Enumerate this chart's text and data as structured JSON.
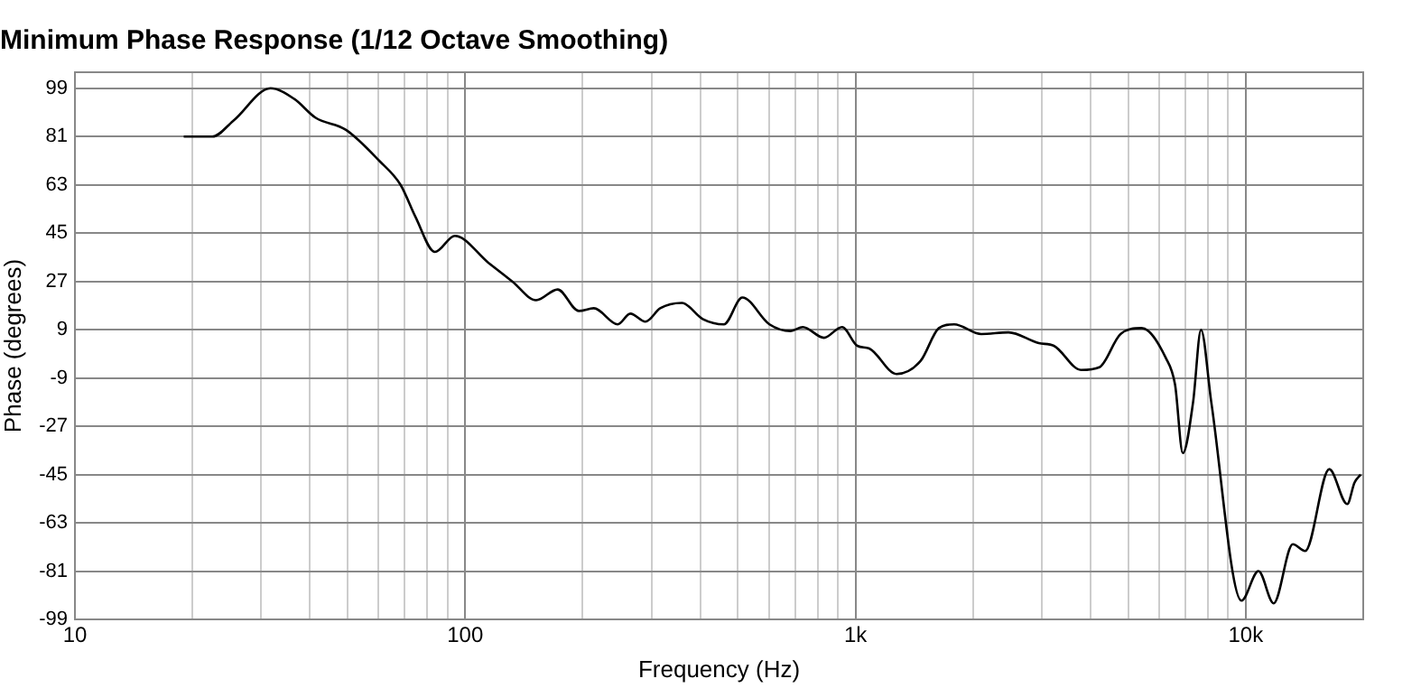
{
  "chart_data": {
    "type": "line",
    "title": "Minimum Phase Response (1/12 Octave Smoothing)",
    "xlabel": "Frequency (Hz)",
    "ylabel": "Phase (degrees)",
    "log": "x",
    "grid": true,
    "legend": false,
    "marker": "none",
    "line_style": "solid",
    "xlim": [
      10,
      20000
    ],
    "xticks": [
      10,
      {
        "value": 20,
        "label": null
      },
      {
        "value": 30,
        "label": null
      },
      {
        "value": 40,
        "label": null
      },
      {
        "value": 50,
        "label": null
      },
      {
        "value": 60,
        "label": null
      },
      {
        "value": 70,
        "label": null
      },
      {
        "value": 80,
        "label": null
      },
      {
        "value": 90,
        "label": null
      },
      100,
      {
        "value": 200,
        "label": null
      },
      {
        "value": 300,
        "label": null
      },
      {
        "value": 400,
        "label": null
      },
      {
        "value": 500,
        "label": null
      },
      {
        "value": 600,
        "label": null
      },
      {
        "value": 700,
        "label": null
      },
      {
        "value": 800,
        "label": null
      },
      {
        "value": 900,
        "label": null
      },
      {
        "value": 1000,
        "label": "1k"
      },
      {
        "value": 2000,
        "label": null
      },
      {
        "value": 3000,
        "label": null
      },
      {
        "value": 4000,
        "label": null
      },
      {
        "value": 5000,
        "label": null
      },
      {
        "value": 6000,
        "label": null
      },
      {
        "value": 7000,
        "label": null
      },
      {
        "value": 8000,
        "label": null
      },
      {
        "value": 9000,
        "label": null
      },
      {
        "value": 10000,
        "label": "10k"
      }
    ],
    "ylim": [
      -99,
      105
    ],
    "yticks": [
      -99,
      -81,
      -63,
      -45,
      -27,
      -9,
      9,
      27,
      45,
      63,
      81,
      99
    ],
    "series": [
      {
        "color": "#000000",
        "x": [
          19,
          22.5,
          25.5,
          31.7,
          36.5,
          41.4,
          49.5,
          60.2,
          68.3,
          74.6,
          83.6,
          94.1,
          114.6,
          132,
          152,
          172.5,
          195.5,
          213.6,
          246,
          265,
          289.6,
          316,
          359,
          406,
          460,
          513,
          602,
          682,
          733,
          830,
          924,
          1011,
          1085,
          1274,
          1469,
          1636,
          1790,
          2101,
          2466,
          2950,
          3224,
          3784,
          4217,
          4778,
          5411,
          6239,
          6590,
          6900,
          7330,
          7680,
          8160,
          9750,
          10780,
          11790,
          13200,
          14200,
          16370,
          18200,
          19000,
          19700
        ],
        "values": [
          81,
          81,
          87,
          99,
          95,
          88,
          83.5,
          72,
          63,
          51,
          38,
          44,
          34,
          27,
          20,
          24,
          16,
          17,
          11,
          15,
          12,
          17,
          19,
          13,
          11,
          21,
          11,
          8.5,
          10,
          6,
          10,
          3,
          2,
          -7.5,
          -2.6,
          9.6,
          11,
          7.4,
          8,
          4,
          3,
          -6,
          -5,
          7.4,
          9.6,
          -1.5,
          -11.5,
          -37,
          -18,
          9,
          -18,
          -92,
          -81,
          -93,
          -71,
          -73.5,
          -43,
          -56,
          -48,
          -45
        ]
      }
    ]
  }
}
